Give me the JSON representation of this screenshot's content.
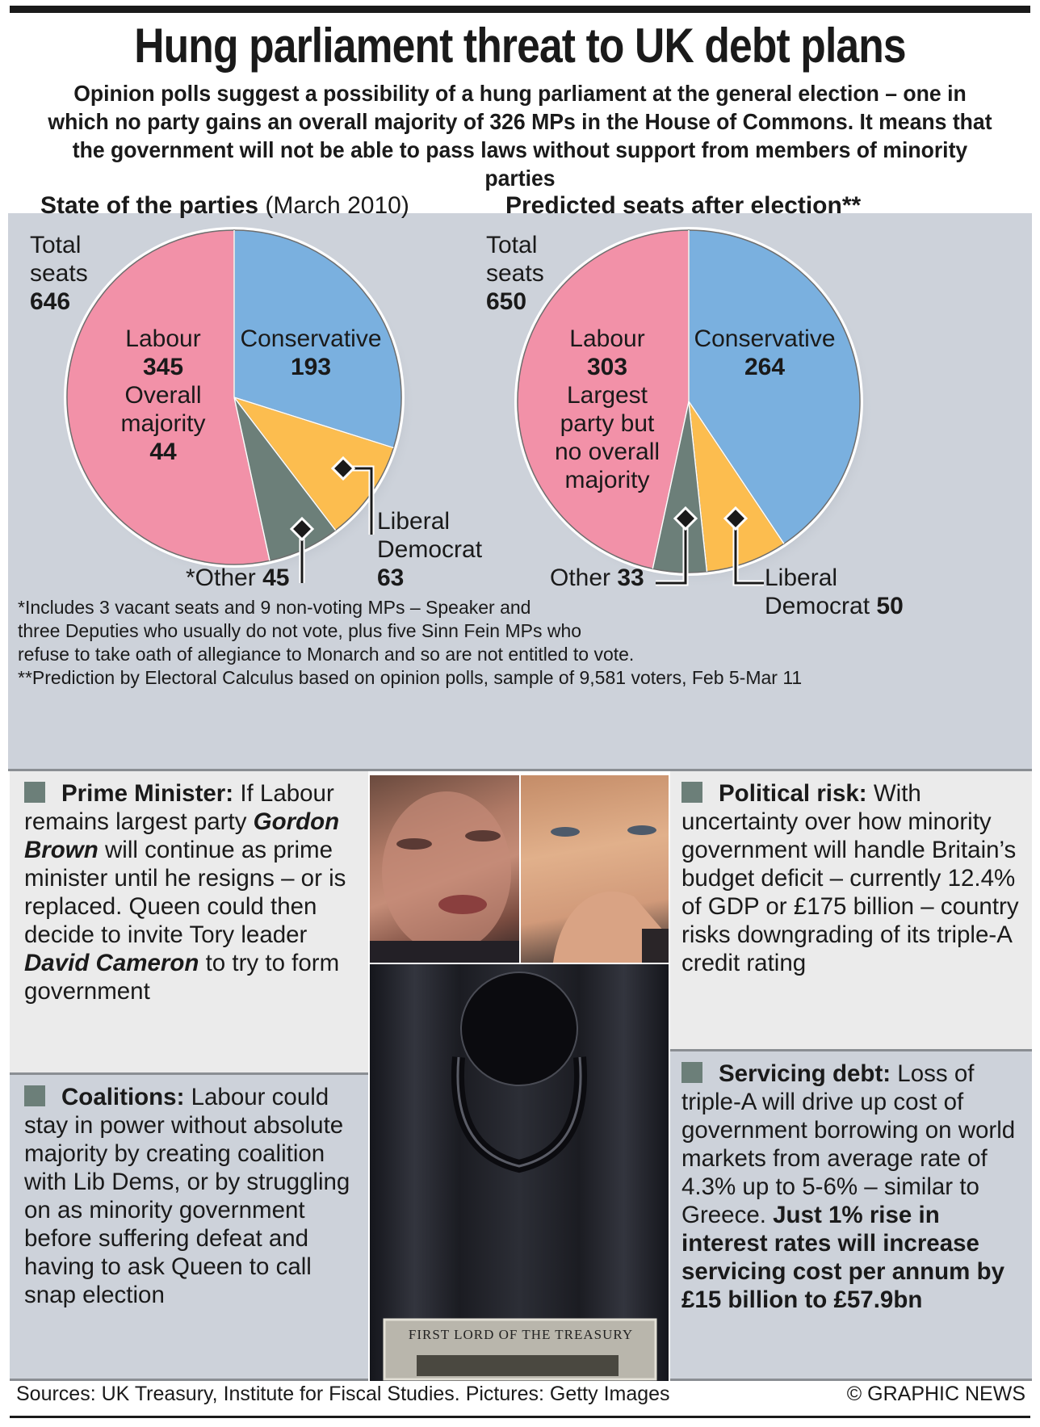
{
  "headline": "Hung parliament threat to UK debt plans",
  "subtitle": "Opinion polls suggest a possibility of a hung parliament at the general election – one in which no party gains an overall majority of 326 MPs in the House of Commons. It means that the government will not be able to pass laws without support from members of minority parties",
  "colors": {
    "labour": "#f291a8",
    "conservative": "#7ab0df",
    "libdem": "#fcbd4f",
    "other": "#6c7f79",
    "panel": "#cdd2da",
    "panel_light": "#ebebeb"
  },
  "chart_data": [
    {
      "type": "pie",
      "title": "State of the parties",
      "title_suffix": "(March 2010)",
      "total_label_1": "Total",
      "total_label_2": "seats",
      "total": 646,
      "slices": [
        {
          "name": "Labour",
          "value": 345,
          "note_1": "Overall",
          "note_2": "majority",
          "note_value": "44"
        },
        {
          "name": "Conservative",
          "value": 193
        },
        {
          "name": "Liberal Democrat",
          "label_1": "Liberal",
          "label_2": "Democrat",
          "value": 63
        },
        {
          "name": "*Other",
          "value": 45
        }
      ]
    },
    {
      "type": "pie",
      "title": "Predicted seats after election**",
      "total_label_1": "Total",
      "total_label_2": "seats",
      "total": 650,
      "slices": [
        {
          "name": "Labour",
          "value": 303,
          "note_1": "Largest",
          "note_2": "party but",
          "note_3": "no overall",
          "note_4": "majority"
        },
        {
          "name": "Conservative",
          "value": 264
        },
        {
          "name": "Liberal Democrat",
          "label_1": "Liberal",
          "label_2": "Democrat",
          "value": 50
        },
        {
          "name": "Other",
          "value": 33
        }
      ]
    }
  ],
  "footnotes": [
    "*Includes 3 vacant seats and 9 non-voting MPs – Speaker and",
    "three Deputies who usually do not vote, plus five Sinn Fein MPs who",
    "refuse to take oath of allegiance to Monarch and so are not entitled to vote.",
    "**Prediction by Electoral Calculus based on opinion polls, sample of 9,581 voters, Feb 5-Mar 11"
  ],
  "panels": {
    "prime_minister": {
      "heading": "Prime Minister:",
      "text_1": " If Labour remains largest party ",
      "name_1": "Gordon Brown",
      "text_2": " will continue as prime minister until he resigns – or is replaced. Queen could then decide to invite Tory leader ",
      "name_2": "David Cameron",
      "text_3": " to try to form government"
    },
    "coalitions": {
      "heading": "Coalitions:",
      "text": " Labour could stay in power without absolute majority by creating coalition with Lib Dems, or by struggling on as minority government before suffering defeat and having to ask Queen to call snap election"
    },
    "political_risk": {
      "heading": "Political risk:",
      "text": " With uncertainty over how minority government will handle Britain’s budget deficit – currently 12.4% of GDP or £175 billion – country risks downgrading of its triple-A credit rating"
    },
    "servicing_debt": {
      "heading": "Servicing debt:",
      "text": " Loss of triple-A will drive up cost of government borrowing on world markets from average rate of 4.3% up to 5-6% – similar to Greece. ",
      "bold_text": "Just 1% rise in interest rates will increase servicing cost per annum by £15 billion to £57.9bn"
    }
  },
  "photos": {
    "plaque_text": "FIRST LORD OF THE TREASURY"
  },
  "footer": {
    "sources": "Sources: UK Treasury, Institute for Fiscal Studies. Pictures: Getty Images",
    "credit": "© GRAPHIC NEWS"
  }
}
